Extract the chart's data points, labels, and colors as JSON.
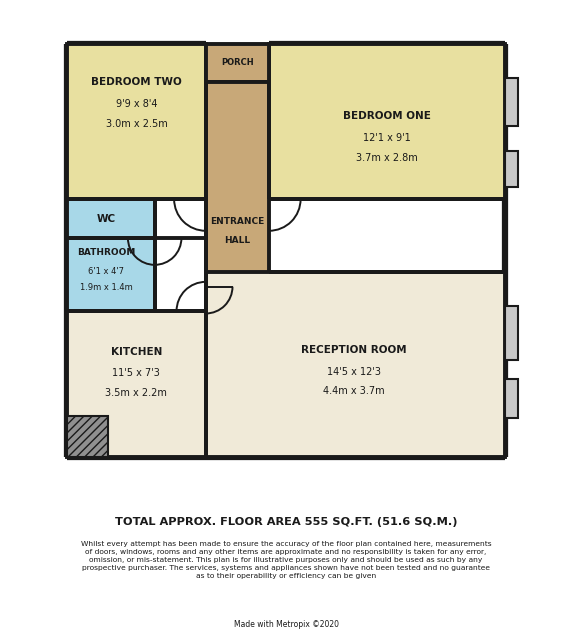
{
  "bg_color": "#ffffff",
  "wall_color": "#1a1a1a",
  "room_yellow": "#e8e0a0",
  "room_cream": "#f0ead8",
  "room_blue": "#a8d8e8",
  "porch_brown": "#c8a878",
  "gray_hatch": "#909090",
  "window_gray": "#c8c8c8",
  "title_text": "TOTAL APPROX. FLOOR AREA 555 SQ.FT. (51.6 SQ.M.)",
  "disclaimer_lines": [
    "Whilst every attempt has been made to ensure the accuracy of the floor plan contained here, measurements",
    "of doors, windows, rooms and any other items are approximate and no responsibility is taken for any error,",
    "omission, or mis-statement. This plan is for illustrative purposes only and should be used as such by any",
    "prospective purchaser. The services, systems and appliances shown have not been tested and no guarantee",
    "as to their operability or efficiency can be given"
  ],
  "made_with": "Made with Metropix ©2020",
  "rooms": {
    "bedroom_two": {
      "label": "BEDROOM TWO",
      "line1": "9'9 x 8'4",
      "line2": "3.0m x 2.5m"
    },
    "bedroom_one": {
      "label": "BEDROOM ONE",
      "line1": "12'1 x 9'1",
      "line2": "3.7m x 2.8m"
    },
    "wc": {
      "label": "WC"
    },
    "bathroom": {
      "label": "BATHROOM",
      "line1": "6'1 x 4'7",
      "line2": "1.9m x 1.4m"
    },
    "entrance": {
      "label1": "ENTRANCE",
      "label2": "HALL"
    },
    "kitchen": {
      "label": "KITCHEN",
      "line1": "11'5 x 7'3",
      "line2": "3.5m x 2.2m"
    },
    "reception": {
      "label": "RECEPTION ROOM",
      "line1": "14'5 x 12'3",
      "line2": "4.4m x 3.7m"
    },
    "porch": {
      "label": "PORCH"
    }
  }
}
